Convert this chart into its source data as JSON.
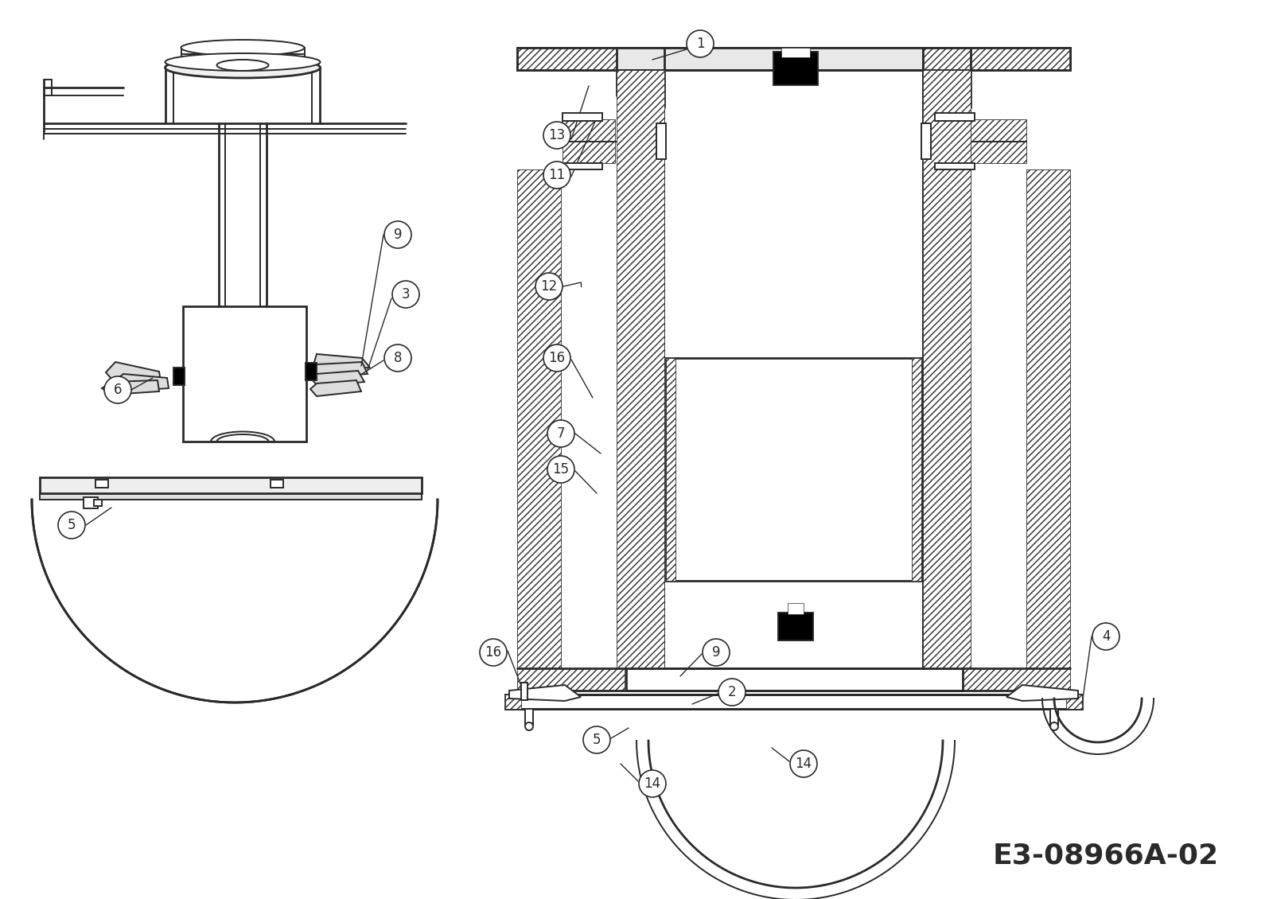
{
  "bg_color": "#ffffff",
  "line_color": "#2a2a2a",
  "title_text": "E3-08966A-02",
  "title_fontsize": 26,
  "lw": 1.4,
  "lw2": 2.0,
  "lw_thin": 0.7
}
